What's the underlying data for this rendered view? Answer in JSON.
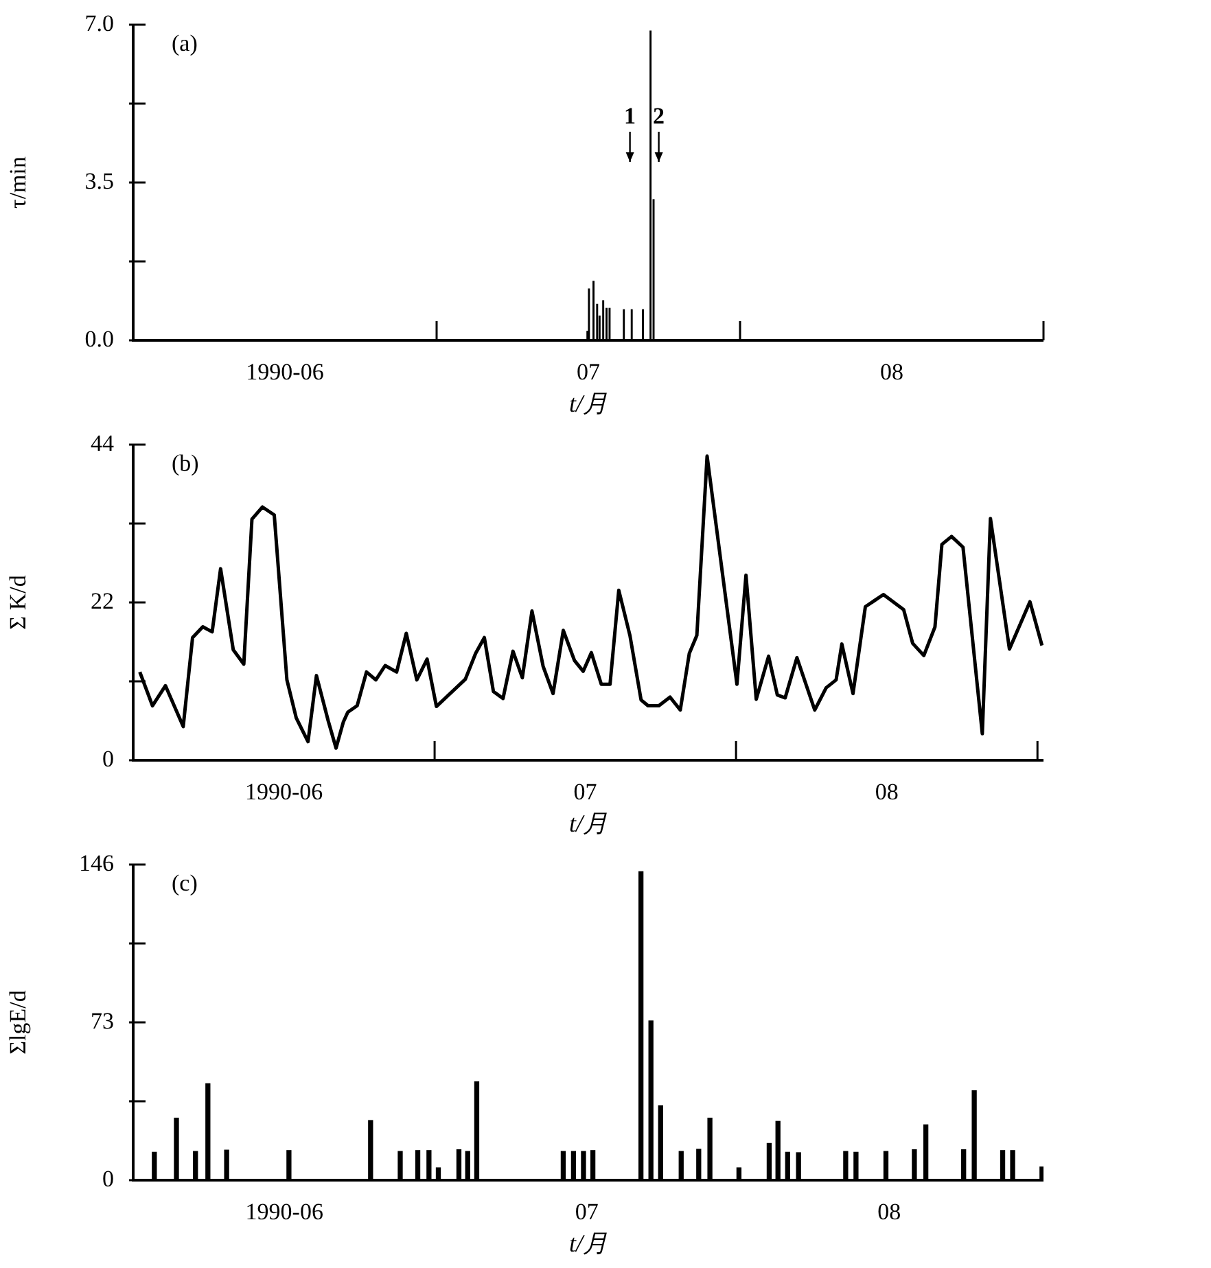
{
  "chart_data": [
    {
      "type": "bar",
      "title": "(a)",
      "xlabel": "t/月",
      "ylabel": "τ/min",
      "color": "#000000",
      "x": [
        7.497,
        7.502,
        7.517,
        7.529,
        7.537,
        7.549,
        7.56,
        7.57,
        7.617,
        7.643,
        7.68,
        7.705,
        7.715
      ],
      "values": [
        0.2,
        1.14,
        1.31,
        0.8,
        0.54,
        0.88,
        0.71,
        0.71,
        0.68,
        0.68,
        0.68,
        6.86,
        3.12
      ],
      "xlim": [
        6,
        9
      ],
      "xticks": [
        {
          "value": 6.5,
          "label": "1990-06"
        },
        {
          "value": 7,
          "label": null
        },
        {
          "value": 7.5,
          "label": "07"
        },
        {
          "value": 8,
          "label": null
        },
        {
          "value": 8.5,
          "label": "08"
        },
        {
          "value": 9,
          "label": null
        }
      ],
      "ylim": [
        0,
        7
      ],
      "yticks": [
        {
          "value": 0,
          "label": "0.0"
        },
        {
          "value": 1.75,
          "label": null
        },
        3.5,
        {
          "value": 5.25,
          "label": null
        },
        {
          "value": 7,
          "label": "7.0"
        }
      ],
      "annotations": [
        "1",
        "2"
      ]
    },
    {
      "type": "line",
      "title": "(b)",
      "xlabel": "t/月",
      "ylabel": "Σ K/d",
      "color": "#000000",
      "marker": "none",
      "x": [
        6.022,
        6.064,
        6.107,
        6.166,
        6.197,
        6.231,
        6.262,
        6.29,
        6.332,
        6.367,
        6.394,
        6.429,
        6.468,
        6.51,
        6.541,
        6.58,
        6.608,
        6.647,
        6.673,
        6.697,
        6.712,
        6.743,
        6.774,
        6.805,
        6.836,
        6.874,
        6.906,
        6.941,
        6.975,
        7.006,
        7.102,
        7.136,
        7.165,
        7.195,
        7.227,
        7.26,
        7.291,
        7.323,
        7.36,
        7.393,
        7.427,
        7.464,
        7.493,
        7.52,
        7.553,
        7.582,
        7.611,
        7.648,
        7.685,
        7.708,
        7.744,
        7.781,
        7.815,
        7.845,
        7.87,
        7.904,
        8.003,
        8.033,
        8.067,
        8.108,
        8.137,
        8.163,
        8.202,
        8.261,
        8.299,
        8.332,
        8.351,
        8.388,
        8.429,
        8.489,
        8.556,
        8.586,
        8.623,
        8.66,
        8.683,
        8.715,
        8.753,
        8.817,
        8.844,
        8.907,
        8.975,
        9.015
      ],
      "values": [
        12.3,
        7.6,
        10.4,
        4.7,
        17.1,
        18.6,
        17.9,
        26.7,
        15.4,
        13.4,
        33.6,
        35.3,
        34.2,
        11.2,
        5.9,
        2.6,
        11.8,
        5.5,
        1.7,
        5.3,
        6.7,
        7.6,
        12.3,
        11.2,
        13.2,
        12.3,
        17.7,
        11.2,
        14.1,
        7.5,
        11.3,
        14.9,
        17.1,
        9.6,
        8.6,
        15.2,
        11.5,
        20.8,
        13.1,
        9.3,
        18.1,
        13.9,
        12.4,
        15,
        10.6,
        10.6,
        23.7,
        17.4,
        8.4,
        7.6,
        7.6,
        8.8,
        7,
        14.9,
        17.4,
        42.4,
        10.6,
        25.8,
        8.5,
        14.5,
        9.1,
        8.7,
        14.3,
        7,
        10.1,
        11.2,
        16.2,
        9.3,
        21.4,
        23.1,
        21,
        16.3,
        14.6,
        18.6,
        30.1,
        31.2,
        29.7,
        3.7,
        33.7,
        15.5,
        22.1,
        16
      ],
      "xlim": [
        6,
        9.02
      ],
      "xticks": [
        {
          "value": 6.5,
          "label": "1990-06"
        },
        {
          "value": 7,
          "label": null
        },
        {
          "value": 7.5,
          "label": "07"
        },
        {
          "value": 8,
          "label": null
        },
        {
          "value": 8.5,
          "label": "08"
        },
        {
          "value": 9,
          "label": null
        }
      ],
      "ylim": [
        0,
        44
      ],
      "yticks": [
        0,
        {
          "value": 11,
          "label": null
        },
        22,
        {
          "value": 33,
          "label": null
        },
        44
      ]
    },
    {
      "type": "bar",
      "title": "(c)",
      "xlabel": "t/月",
      "ylabel": "ΣlgE/d",
      "color": "#000000",
      "x": [
        6.07,
        6.143,
        6.206,
        6.247,
        6.309,
        6.515,
        6.785,
        6.883,
        6.941,
        6.978,
        7.009,
        7.077,
        7.106,
        7.136,
        7.422,
        7.456,
        7.489,
        7.52,
        7.679,
        7.712,
        7.744,
        7.812,
        7.87,
        7.907,
        8.003,
        8.103,
        8.132,
        8.164,
        8.2,
        8.356,
        8.39,
        8.489,
        8.583,
        8.621,
        8.746,
        8.781,
        8.875,
        8.908,
        9.005
      ],
      "values": [
        12.9,
        28.7,
        13.3,
        44.6,
        13.9,
        13.7,
        27.6,
        13.3,
        13.7,
        13.7,
        5.7,
        14.1,
        13.3,
        45.5,
        13.3,
        13.3,
        13.3,
        13.7,
        142.7,
        73.7,
        34.4,
        13.3,
        14.3,
        28.7,
        5.7,
        17,
        27.2,
        12.9,
        12.7,
        13.3,
        12.9,
        13.3,
        14.1,
        25.6,
        14.1,
        41.4,
        13.7,
        13.7,
        6.1
      ],
      "xlim": [
        6,
        9.01
      ],
      "xticks": [
        {
          "value": 6.5,
          "label": "1990-06"
        },
        {
          "value": 7.5,
          "label": "07"
        },
        {
          "value": 8.5,
          "label": "08"
        }
      ],
      "ylim": [
        0,
        146
      ],
      "yticks": [
        0,
        {
          "value": 36.5,
          "label": null
        },
        73,
        {
          "value": 109.5,
          "label": null
        },
        146
      ]
    }
  ]
}
